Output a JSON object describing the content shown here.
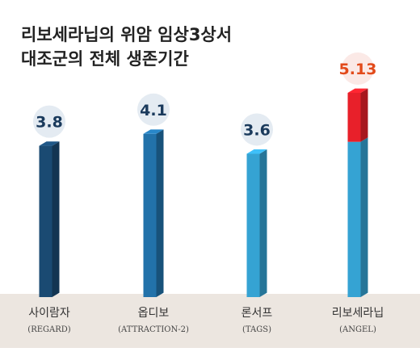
{
  "chart_data": {
    "type": "bar",
    "title_lines": [
      "리보세라닙의 위암 임상3상서",
      "대조군의 전체 생존기간"
    ],
    "categories": [
      "사이람자",
      "옵디보",
      "론서프",
      "리보세라닙"
    ],
    "subcategories": [
      "(REGARD)",
      "(ATTRACTION-2)",
      "(TAGS)",
      "(ANGEL)"
    ],
    "values": [
      3.8,
      4.1,
      3.6,
      5.13
    ],
    "value_labels": [
      "3.8",
      "4.1",
      "3.6",
      "5.13"
    ],
    "ylim": [
      0,
      5.13
    ],
    "highlight": {
      "index": 3,
      "base_value": 3.9
    },
    "colors": {
      "bars": [
        "#1a4a72",
        "#2272aa",
        "#35a3d3",
        "#35a3d3"
      ],
      "highlight_top": "#e8202a",
      "value_text": "#1a3a5c",
      "highlight_text": "#e24a1a",
      "floor": "#ece6e0",
      "circle": "#e4ebf2",
      "highlight_circle": "#fbe9e6"
    }
  }
}
